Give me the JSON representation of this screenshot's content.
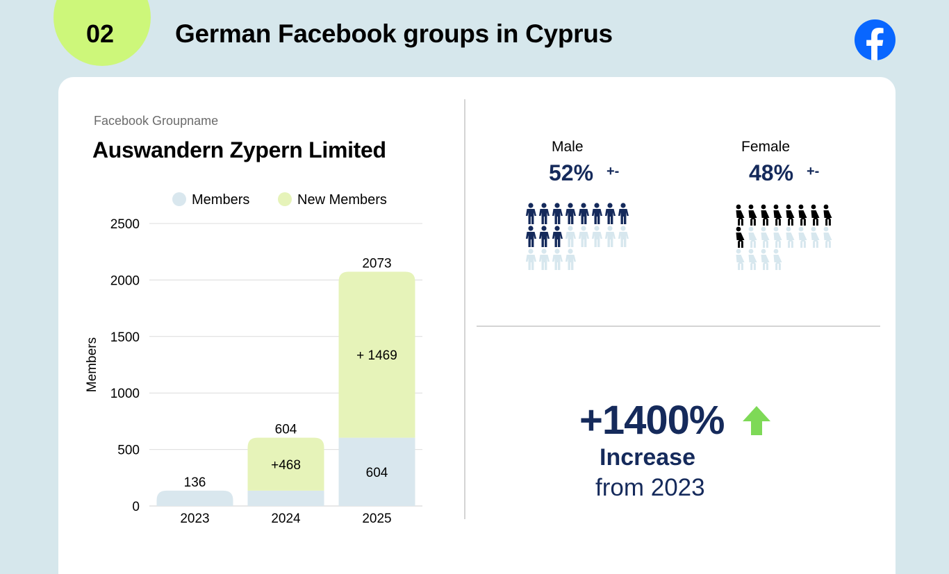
{
  "header": {
    "number": "02",
    "title": "German Facebook groups in Cyprus",
    "logo_icon": "facebook-icon"
  },
  "group": {
    "caption": "Facebook Groupname",
    "name": "Auswandern Zypern Limited"
  },
  "chart_data": {
    "type": "bar",
    "stacked": true,
    "categories": [
      "2023",
      "2024",
      "2025"
    ],
    "series": [
      {
        "name": "Members",
        "values": [
          136,
          136,
          604
        ],
        "color": "#d9e7ee"
      },
      {
        "name": "New Members",
        "values": [
          0,
          468,
          1469
        ],
        "color": "#e6f3b9"
      }
    ],
    "segment_labels": {
      "Members": [
        "",
        "",
        "604"
      ],
      "New Members": [
        "",
        "+468",
        "+ 1469"
      ]
    },
    "totals": [
      136,
      604,
      2073
    ],
    "yticks": [
      0,
      500,
      1000,
      1500,
      2000,
      2500
    ],
    "ylim": [
      0,
      2500
    ],
    "ylabel": "Members",
    "xlabel": "",
    "legend": [
      "Members",
      "New Members"
    ],
    "legend_position": "top",
    "grid": true
  },
  "gender": {
    "male": {
      "label": "Male",
      "percent": "52%",
      "note": "+-",
      "icons_total": 20,
      "icons_filled": 11,
      "icon": "male-person-icon"
    },
    "female": {
      "label": "Female",
      "percent": "48%",
      "note": "+-",
      "icons_total": 20,
      "icons_filled": 9,
      "icon": "female-person-icon"
    }
  },
  "growth": {
    "percent": "+1400%",
    "label": "Increase",
    "from": "from 2023",
    "icon": "arrow-up-icon"
  },
  "colors": {
    "background": "#d6e7ec",
    "badge": "#cdf77a",
    "navy": "#152a5b",
    "members": "#d9e7ee",
    "new_members": "#e6f3b9",
    "arrow": "#7ed957",
    "facebook": "#0866ff",
    "female_filled": "#000000",
    "icon_faded": "#d7e7ee"
  }
}
